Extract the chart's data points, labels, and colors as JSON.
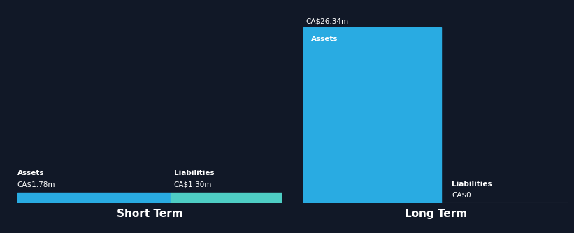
{
  "bg_color": "#111827",
  "text_color": "#ffffff",
  "short_term": {
    "assets_value": 1.78,
    "assets_label": "CA$1.78m",
    "assets_color": "#29ABE2",
    "liabilities_value": 1.3,
    "liabilities_label": "CA$1.30m",
    "liabilities_color": "#4ECDC4",
    "title": "Short Term",
    "assets_text": "Assets",
    "liabilities_text": "Liabilities"
  },
  "long_term": {
    "assets_value": 26.34,
    "assets_label": "CA$26.34m",
    "assets_color": "#29ABE2",
    "liabilities_value": 0.0,
    "liabilities_label": "CA$0",
    "liabilities_color": "#29ABE2",
    "title": "Long Term",
    "assets_text": "Assets",
    "liabilities_text": "Liabilities"
  },
  "max_value": 26.34,
  "baseline_color": "#555566",
  "label_fontsize": 7.5,
  "title_fontsize": 11
}
